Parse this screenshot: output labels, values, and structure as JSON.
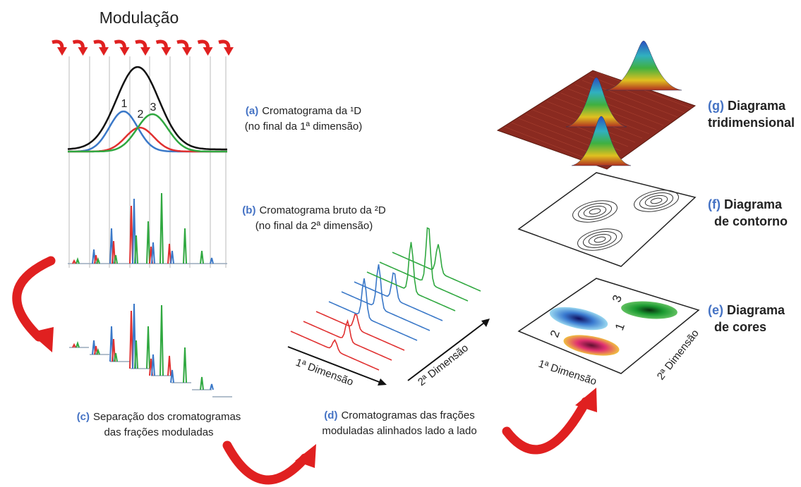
{
  "title": "Modulação",
  "peak_labels": [
    "1",
    "2",
    "3"
  ],
  "panels": [
    {
      "letter": "(a)",
      "lines": [
        "Cromatograma da ¹D",
        "(no final da 1ª dimensão)"
      ]
    },
    {
      "letter": "(b)",
      "lines": [
        "Cromatograma bruto da ²D",
        "(no final da 2ª dimensão)"
      ]
    },
    {
      "letter": "(c)",
      "lines": [
        "Separação dos cromatogramas",
        "das frações moduladas"
      ]
    },
    {
      "letter": "(d)",
      "lines": [
        "Cromatogramas das frações",
        "moduladas alinhados lado a lado"
      ]
    },
    {
      "letter": "(g)",
      "lines": [
        "Diagrama",
        "tridimensional"
      ]
    },
    {
      "letter": "(f)",
      "lines": [
        "Diagrama",
        "de contorno"
      ]
    },
    {
      "letter": "(e)",
      "lines": [
        "Diagrama",
        "de cores"
      ]
    }
  ],
  "waterfall_axes": [
    "1ª Dimensão",
    "2ª Dimensão"
  ],
  "color_map_axes": [
    "1ª Dimensão",
    "2ª Dimensão"
  ],
  "color_map_labels": [
    "1",
    "2",
    "3"
  ]
}
